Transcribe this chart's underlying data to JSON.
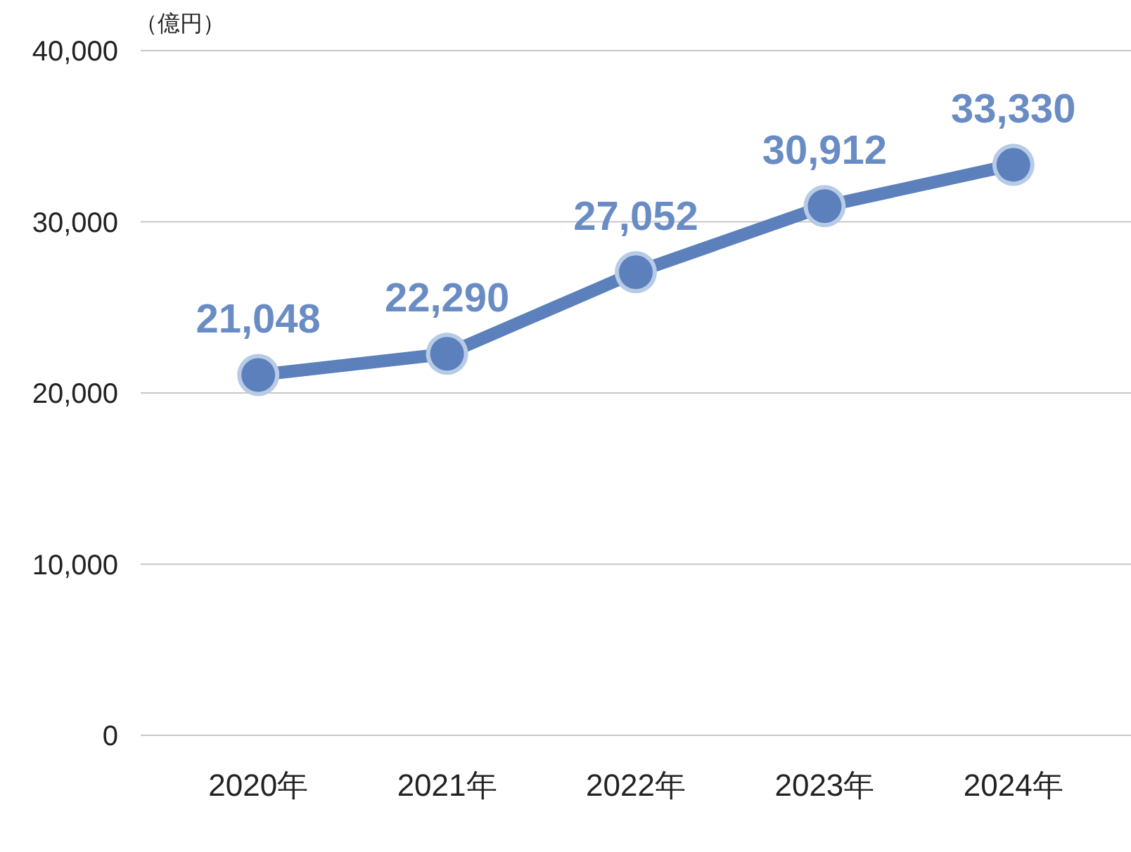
{
  "chart_data": {
    "type": "line",
    "ylabel": "（億円）",
    "categories": [
      "2020年",
      "2021年",
      "2022年",
      "2023年",
      "2024年"
    ],
    "series": [
      {
        "color": "#5b80bb",
        "values": [
          21048,
          22290,
          27052,
          30912,
          33330
        ],
        "value_labels": [
          "21,048",
          "22,290",
          "27,052",
          "30,912",
          "33,330"
        ]
      }
    ],
    "ylim": [
      0,
      40000
    ],
    "yticks": [
      0,
      {
        "value": 10000,
        "label": "10,000"
      },
      {
        "value": 20000,
        "label": "20,000"
      },
      {
        "value": 30000,
        "label": "30,000"
      },
      {
        "value": 40000,
        "label": "40,000"
      }
    ],
    "grid": "y",
    "marker": "circle",
    "line_style": "solid"
  }
}
